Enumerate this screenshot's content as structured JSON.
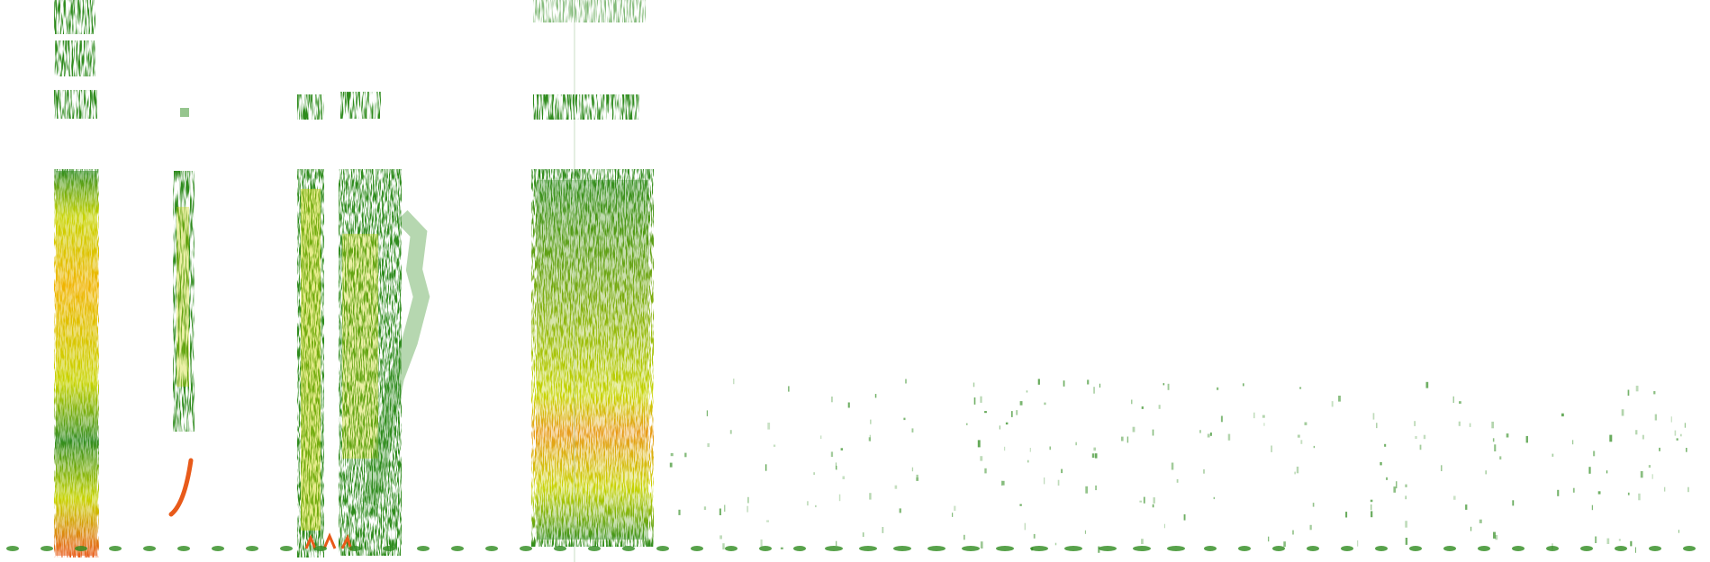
{
  "colors": {
    "background": "#ffffff",
    "low": "#2e8b1e",
    "mid": "#c7d400",
    "high": "#f0b400",
    "peak": "#e85a1a"
  }
}
